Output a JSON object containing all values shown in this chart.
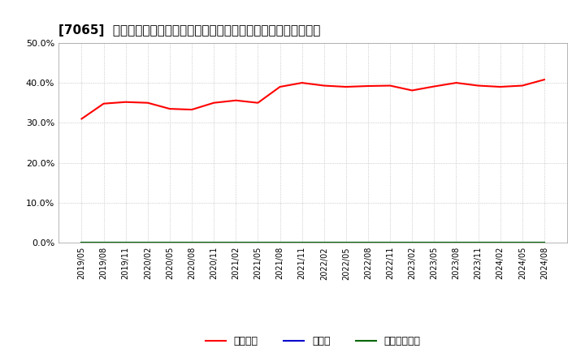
{
  "title": "[7065]  自己資本、のれん、繰延税金資産の総資産に対する比率の推移",
  "title_prefix": "[7065]  ",
  "equity_dates": [
    "2019/05",
    "2019/08",
    "2019/11",
    "2020/02",
    "2020/05",
    "2020/08",
    "2020/11",
    "2021/02",
    "2021/05",
    "2021/08",
    "2021/11",
    "2022/02",
    "2022/05",
    "2022/08",
    "2022/11",
    "2023/02",
    "2023/05",
    "2023/08",
    "2023/11",
    "2024/02",
    "2024/05",
    "2024/08"
  ],
  "equity_values": [
    0.31,
    0.348,
    0.352,
    0.35,
    0.335,
    0.333,
    0.35,
    0.356,
    0.35,
    0.39,
    0.4,
    0.393,
    0.39,
    0.392,
    0.393,
    0.381,
    0.391,
    0.4,
    0.393,
    0.39,
    0.393,
    0.408
  ],
  "noren_values": [
    0,
    0,
    0,
    0,
    0,
    0,
    0,
    0,
    0,
    0,
    0,
    0,
    0,
    0,
    0,
    0,
    0,
    0,
    0,
    0,
    0,
    0
  ],
  "deferred_values": [
    0,
    0,
    0,
    0,
    0,
    0,
    0,
    0,
    0,
    0,
    0,
    0,
    0,
    0,
    0,
    0,
    0,
    0,
    0,
    0,
    0,
    0
  ],
  "equity_color": "#ff0000",
  "noren_color": "#0000cc",
  "deferred_color": "#006600",
  "ylim": [
    0.0,
    0.5
  ],
  "yticks": [
    0.0,
    0.1,
    0.2,
    0.3,
    0.4,
    0.5
  ],
  "background_color": "#ffffff",
  "plot_bg_color": "#ffffff",
  "grid_color": "#bbbbbb",
  "title_fontsize": 11,
  "legend_labels": [
    "自己資本",
    "のれん",
    "繰延税金資産"
  ]
}
